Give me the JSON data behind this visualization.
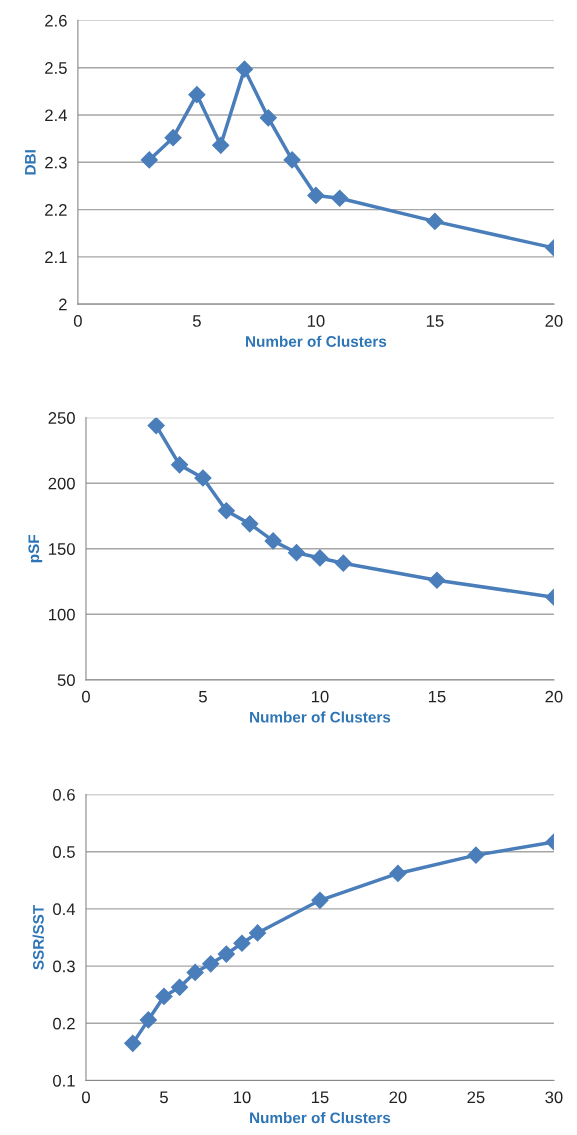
{
  "chart_data": [
    {
      "type": "line",
      "xlabel": "Number of Clusters",
      "ylabel": "DBI",
      "x": [
        3,
        4,
        5,
        6,
        7,
        8,
        9,
        10,
        11,
        15,
        20
      ],
      "series": [
        {
          "color": "#4a7ebb",
          "values": [
            2.305,
            2.352,
            2.443,
            2.336,
            2.497,
            2.394,
            2.305,
            2.23,
            2.224,
            2.175,
            2.119
          ]
        }
      ],
      "xlim": [
        0,
        20
      ],
      "xticks": [
        0,
        5,
        10,
        15,
        20
      ],
      "ylim": [
        2,
        2.6
      ],
      "yticks": [
        2,
        2.1,
        2.2,
        2.3,
        2.4,
        2.5,
        2.6
      ],
      "grid": "y",
      "marker": "diamond",
      "line_style": "solid"
    },
    {
      "type": "line",
      "xlabel": "Number of Clusters",
      "ylabel": "pSF",
      "x": [
        3,
        4,
        5,
        6,
        7,
        8,
        9,
        10,
        11,
        15,
        20
      ],
      "series": [
        {
          "color": "#4a7ebb",
          "values": [
            244,
            214,
            204,
            179,
            169,
            156,
            147,
            143,
            139,
            126,
            113
          ]
        }
      ],
      "xlim": [
        0,
        20
      ],
      "xticks": [
        0,
        5,
        10,
        15,
        20
      ],
      "ylim": [
        50,
        250
      ],
      "yticks": [
        50,
        100,
        150,
        200,
        250
      ],
      "grid": "y",
      "marker": "diamond",
      "line_style": "solid"
    },
    {
      "type": "line",
      "xlabel": "Number of Clusters",
      "ylabel": "SSR/SST",
      "x": [
        3,
        4,
        5,
        6,
        7,
        8,
        9,
        10,
        11,
        15,
        20,
        25,
        30
      ],
      "series": [
        {
          "color": "#4a7ebb",
          "values": [
            0.165,
            0.206,
            0.247,
            0.263,
            0.289,
            0.304,
            0.321,
            0.34,
            0.358,
            0.415,
            0.462,
            0.494,
            0.517
          ]
        }
      ],
      "xlim": [
        0,
        30
      ],
      "xticks": [
        0,
        5,
        10,
        15,
        20,
        25,
        30
      ],
      "ylim": [
        0.1,
        0.6
      ],
      "yticks": [
        0.1,
        0.2,
        0.3,
        0.4,
        0.5,
        0.6
      ],
      "grid": "y",
      "marker": "diamond",
      "line_style": "solid"
    }
  ]
}
